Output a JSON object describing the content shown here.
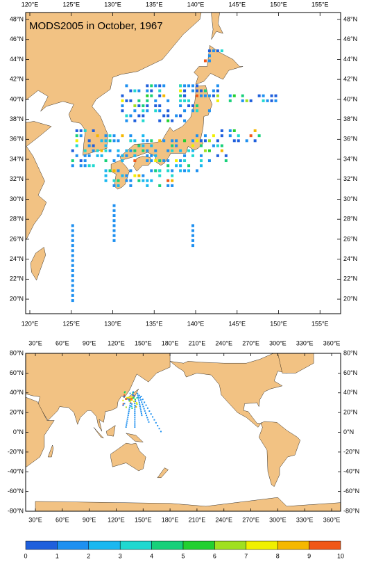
{
  "map_top": {
    "title": "MODS2005 in October, 1967",
    "lon_labels": [
      "120°E",
      "125°E",
      "130°E",
      "135°E",
      "140°E",
      "145°E",
      "150°E",
      "155°E"
    ],
    "lat_labels": [
      "20°N",
      "22°N",
      "24°N",
      "26°N",
      "28°N",
      "30°N",
      "32°N",
      "34°N",
      "36°N",
      "38°N",
      "40°N",
      "42°N",
      "44°N",
      "46°N",
      "48°N"
    ]
  },
  "map_bottom": {
    "lon_labels": [
      "30°E",
      "60°E",
      "90°E",
      "120°E",
      "150°E",
      "180°E",
      "210°E",
      "240°E",
      "270°E",
      "300°E",
      "330°E",
      "360°E"
    ],
    "lat_labels": [
      "80°N",
      "60°N",
      "40°N",
      "20°N",
      "0°N",
      "-20°N",
      "-40°N",
      "-60°N",
      "-80°N"
    ]
  },
  "colorbar": {
    "labels": [
      "0",
      "1",
      "2",
      "3",
      "4",
      "5",
      "6",
      "7",
      "8",
      "9",
      "10"
    ],
    "colors": [
      "#1f5fdc",
      "#1e90f0",
      "#1ab8f0",
      "#20d8d0",
      "#18d07a",
      "#22d030",
      "#a0e020",
      "#f0f000",
      "#f5b800",
      "#f05818"
    ]
  }
}
